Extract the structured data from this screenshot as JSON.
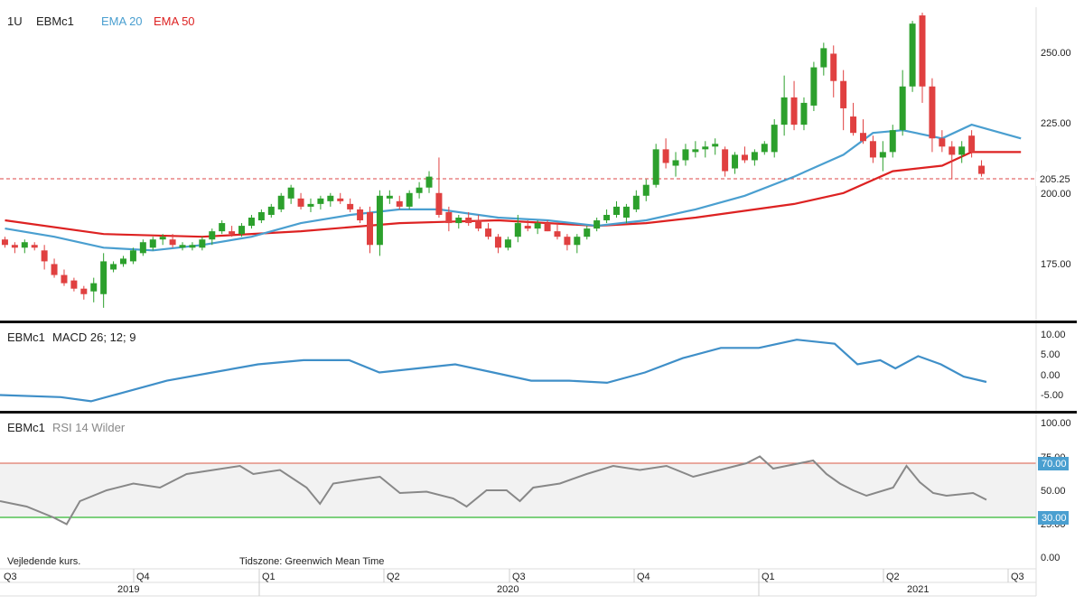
{
  "main": {
    "header": {
      "interval": "1U",
      "symbol": "EBMc1",
      "ema20_label": "EMA 20",
      "ema50_label": "EMA 50"
    },
    "price_label": "205.25",
    "y_ticks": [
      "250.00",
      "225.00",
      "200.00",
      "175.00"
    ]
  },
  "macd_panel": {
    "symbol": "EBMc1",
    "label": "MACD 26; 12; 9",
    "y_ticks": [
      "10.00",
      "5.00",
      "0.00",
      "-5.00"
    ]
  },
  "rsi_panel": {
    "symbol": "EBMc1",
    "label": "RSI 14 Wilder",
    "y_ticks": [
      "100.00",
      "75.00",
      "50.00",
      "25.00",
      "0.00"
    ],
    "upper_label": "70.00",
    "lower_label": "30.00"
  },
  "footer": {
    "note": "Vejledende kurs.",
    "timezone": "Tidszone: Greenwich Mean Time",
    "quarters": [
      "Q3",
      "Q4",
      "Q1",
      "Q2",
      "Q3",
      "Q4",
      "Q1",
      "Q2",
      "Q3"
    ],
    "years": [
      "2019",
      "2020",
      "2021"
    ]
  },
  "colors": {
    "up": "#2ca02c",
    "down": "#e04040",
    "ema20": "#4a9fd0",
    "ema50": "#dd2222",
    "macd": "#3f8fc8",
    "rsi": "#888888",
    "rsi_upper": "#e07a6a",
    "rsi_lower": "#33b833",
    "badge": "#4a9fd0"
  },
  "chart_data": [
    {
      "type": "candlestick",
      "panel": "price",
      "ylim": [
        150,
        265
      ],
      "current_price": 205.25,
      "ohlc": [
        [
          180,
          181,
          177,
          178
        ],
        [
          178,
          179,
          175,
          177
        ],
        [
          177,
          180,
          175,
          179
        ],
        [
          178,
          179,
          176,
          177
        ],
        [
          176,
          178,
          169,
          172
        ],
        [
          171,
          173,
          166,
          167
        ],
        [
          167,
          169,
          163,
          164
        ],
        [
          165,
          166,
          161,
          162
        ],
        [
          162,
          163,
          158,
          160
        ],
        [
          161,
          166,
          157,
          164
        ],
        [
          160,
          175,
          155,
          172
        ],
        [
          169,
          172,
          168,
          171
        ],
        [
          171,
          174,
          170,
          173
        ],
        [
          172,
          177,
          171,
          176
        ],
        [
          175,
          180,
          174,
          179
        ],
        [
          177,
          181,
          176,
          180
        ],
        [
          180,
          182,
          178,
          181
        ],
        [
          180,
          182,
          177,
          178
        ],
        [
          177,
          179,
          176,
          178
        ],
        [
          177,
          179,
          176,
          178
        ],
        [
          177,
          181,
          176,
          180
        ],
        [
          180,
          184,
          178,
          183
        ],
        [
          183,
          187,
          182,
          186
        ],
        [
          183,
          185,
          181,
          182
        ],
        [
          182,
          186,
          181,
          185
        ],
        [
          185,
          189,
          184,
          188
        ],
        [
          187,
          191,
          186,
          190
        ],
        [
          189,
          193,
          188,
          192
        ],
        [
          191,
          197,
          190,
          196
        ],
        [
          195,
          200,
          193,
          199
        ],
        [
          195,
          197,
          191,
          192
        ],
        [
          192,
          195,
          190,
          193
        ],
        [
          193,
          196,
          191,
          195
        ],
        [
          194,
          197,
          192,
          196
        ],
        [
          195,
          197,
          193,
          194
        ],
        [
          193,
          195,
          190,
          191
        ],
        [
          191,
          192,
          186,
          187
        ],
        [
          190,
          192,
          175,
          178
        ],
        [
          178,
          198,
          174,
          196
        ],
        [
          195,
          198,
          193,
          196
        ],
        [
          194,
          196,
          191,
          192
        ],
        [
          192,
          198,
          191,
          197
        ],
        [
          197,
          201,
          195,
          199
        ],
        [
          199,
          205,
          197,
          203
        ],
        [
          197,
          210,
          188,
          189
        ],
        [
          190,
          192,
          183,
          186
        ],
        [
          186,
          189,
          184,
          188
        ],
        [
          188,
          190,
          185,
          186
        ],
        [
          187,
          189,
          183,
          184
        ],
        [
          184,
          186,
          180,
          181
        ],
        [
          181,
          182,
          175,
          177
        ],
        [
          177,
          181,
          176,
          180
        ],
        [
          181,
          189,
          179,
          186
        ],
        [
          185,
          187,
          183,
          184
        ],
        [
          184,
          187,
          182,
          186
        ],
        [
          186,
          187,
          183,
          183
        ],
        [
          183,
          186,
          180,
          181
        ],
        [
          181,
          182,
          176,
          178
        ],
        [
          178,
          182,
          175,
          181
        ],
        [
          181,
          185,
          180,
          184
        ],
        [
          184,
          188,
          183,
          187
        ],
        [
          187,
          191,
          186,
          189
        ],
        [
          189,
          194,
          188,
          192
        ],
        [
          188,
          193,
          186,
          192
        ],
        [
          191,
          198,
          190,
          196
        ],
        [
          196,
          202,
          194,
          200
        ],
        [
          200,
          215,
          199,
          213
        ],
        [
          213,
          217,
          206,
          208
        ],
        [
          207,
          212,
          203,
          209
        ],
        [
          209,
          215,
          207,
          213
        ],
        [
          212,
          216,
          210,
          213
        ],
        [
          213,
          216,
          210,
          214
        ],
        [
          214,
          217,
          211,
          215
        ],
        [
          213,
          214,
          203,
          205
        ],
        [
          206,
          212,
          204,
          211
        ],
        [
          211,
          214,
          208,
          209
        ],
        [
          209,
          213,
          207,
          212
        ],
        [
          212,
          216,
          211,
          215
        ],
        [
          212,
          224,
          210,
          222
        ],
        [
          222,
          240,
          218,
          232
        ],
        [
          232,
          238,
          220,
          222
        ],
        [
          222,
          232,
          220,
          230
        ],
        [
          229,
          245,
          227,
          243
        ],
        [
          243,
          252,
          240,
          250
        ],
        [
          248,
          251,
          232,
          238
        ],
        [
          238,
          242,
          220,
          228
        ],
        [
          225,
          230,
          218,
          219
        ],
        [
          219,
          224,
          215,
          216
        ],
        [
          216,
          218,
          208,
          210
        ],
        [
          210,
          216,
          205,
          212
        ],
        [
          212,
          222,
          210,
          220
        ],
        [
          220,
          242,
          218,
          236
        ],
        [
          236,
          260,
          234,
          259
        ],
        [
          262,
          263,
          230,
          236
        ],
        [
          236,
          239,
          212,
          217
        ],
        [
          217,
          220,
          212,
          214
        ],
        [
          214,
          216,
          202,
          211
        ],
        [
          211,
          216,
          208,
          214
        ],
        [
          218,
          220,
          210,
          212
        ],
        [
          207,
          209,
          203,
          204
        ]
      ],
      "ema20": [
        [
          0,
          184
        ],
        [
          5,
          181
        ],
        [
          10,
          177
        ],
        [
          15,
          176
        ],
        [
          20,
          178
        ],
        [
          25,
          181
        ],
        [
          30,
          186
        ],
        [
          35,
          189
        ],
        [
          40,
          191
        ],
        [
          44,
          191
        ],
        [
          50,
          188
        ],
        [
          55,
          187
        ],
        [
          60,
          185
        ],
        [
          65,
          187
        ],
        [
          70,
          191
        ],
        [
          75,
          196
        ],
        [
          80,
          203
        ],
        [
          85,
          211
        ],
        [
          88,
          219
        ],
        [
          91,
          220
        ],
        [
          95,
          217
        ],
        [
          98,
          222
        ],
        [
          100,
          220
        ],
        [
          103,
          217
        ]
      ],
      "ema50": [
        [
          0,
          187
        ],
        [
          10,
          182
        ],
        [
          20,
          181
        ],
        [
          30,
          183
        ],
        [
          40,
          186
        ],
        [
          50,
          187
        ],
        [
          60,
          185
        ],
        [
          65,
          186
        ],
        [
          70,
          188
        ],
        [
          80,
          193
        ],
        [
          85,
          197
        ],
        [
          90,
          205
        ],
        [
          95,
          207
        ],
        [
          98,
          212
        ],
        [
          103,
          212
        ]
      ]
    },
    {
      "type": "line",
      "panel": "macd",
      "name": "MACD 26; 12; 9",
      "ylim": [
        -8,
        14
      ],
      "points": [
        [
          0,
          -3.5
        ],
        [
          8,
          -4
        ],
        [
          12,
          -5
        ],
        [
          16,
          -3
        ],
        [
          22,
          0
        ],
        [
          28,
          2
        ],
        [
          34,
          4
        ],
        [
          40,
          5
        ],
        [
          46,
          5
        ],
        [
          50,
          2
        ],
        [
          55,
          3
        ],
        [
          60,
          4
        ],
        [
          65,
          2
        ],
        [
          70,
          0
        ],
        [
          75,
          0
        ],
        [
          80,
          -0.5
        ],
        [
          85,
          2
        ],
        [
          90,
          5.5
        ],
        [
          95,
          8
        ],
        [
          100,
          8
        ],
        [
          105,
          10
        ],
        [
          110,
          9
        ],
        [
          113,
          4
        ],
        [
          116,
          5
        ],
        [
          118,
          3
        ],
        [
          121,
          6
        ],
        [
          124,
          4
        ],
        [
          127,
          1
        ],
        [
          130,
          -0.3
        ]
      ]
    },
    {
      "type": "line",
      "panel": "rsi",
      "name": "RSI 14 Wilder",
      "ylim": [
        0,
        100
      ],
      "upper": 70,
      "lower": 30,
      "points": [
        [
          0,
          42
        ],
        [
          4,
          38
        ],
        [
          8,
          30
        ],
        [
          10,
          25
        ],
        [
          12,
          42
        ],
        [
          16,
          50
        ],
        [
          20,
          55
        ],
        [
          24,
          52
        ],
        [
          28,
          62
        ],
        [
          32,
          65
        ],
        [
          36,
          68
        ],
        [
          38,
          62
        ],
        [
          42,
          65
        ],
        [
          46,
          52
        ],
        [
          48,
          40
        ],
        [
          50,
          55
        ],
        [
          54,
          58
        ],
        [
          57,
          60
        ],
        [
          60,
          48
        ],
        [
          64,
          49
        ],
        [
          68,
          44
        ],
        [
          70,
          38
        ],
        [
          73,
          50
        ],
        [
          76,
          50
        ],
        [
          78,
          42
        ],
        [
          80,
          52
        ],
        [
          84,
          55
        ],
        [
          88,
          62
        ],
        [
          92,
          68
        ],
        [
          96,
          65
        ],
        [
          100,
          68
        ],
        [
          104,
          60
        ],
        [
          108,
          65
        ],
        [
          112,
          70
        ],
        [
          114,
          75
        ],
        [
          116,
          66
        ],
        [
          118,
          68
        ],
        [
          122,
          72
        ],
        [
          124,
          62
        ],
        [
          126,
          55
        ],
        [
          128,
          50
        ],
        [
          130,
          46
        ],
        [
          134,
          52
        ],
        [
          136,
          68
        ],
        [
          138,
          56
        ],
        [
          140,
          48
        ],
        [
          142,
          46
        ],
        [
          146,
          48
        ],
        [
          148,
          43
        ]
      ]
    }
  ]
}
